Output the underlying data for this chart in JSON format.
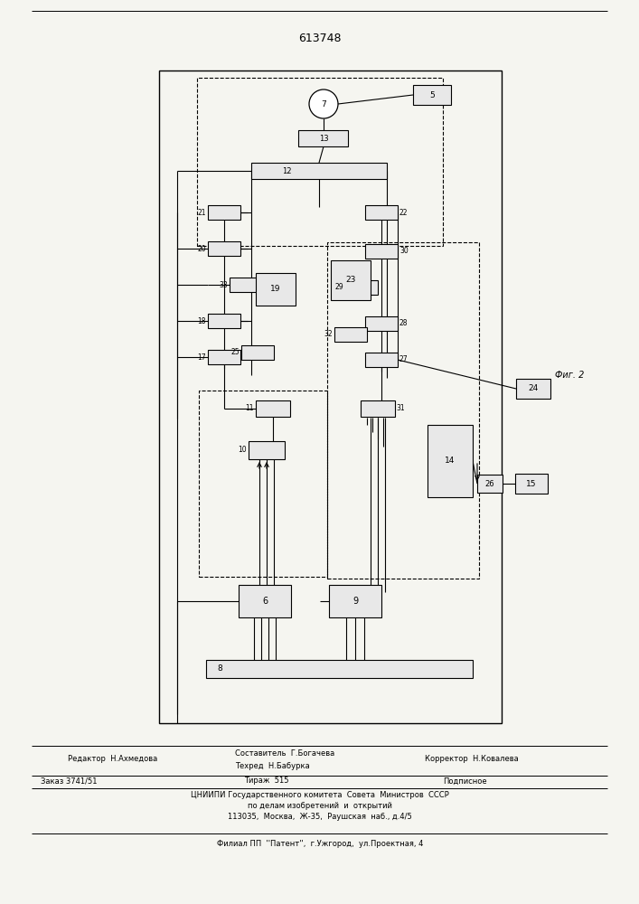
{
  "title": "613748",
  "background_color": "#f5f5f0",
  "box_fill": "#e8e8e8",
  "box_fill_light": "#f0f0f0",
  "line_color": "#111111",
  "footer": {
    "line1_left": "Редактор  Н.Ахмедова",
    "line1_center1": "Составитель  Г.Богачева",
    "line1_center2": "Техред  Н.Бабурка",
    "line1_right": "Корректор  Н.Ковалева",
    "line2_left": "Заказ 3741/51",
    "line2_center": "Тираж  515",
    "line2_right": "Подписное",
    "line3": "ЦНИИПИ Государственного комитета  Совета  Министров  СССР",
    "line4": "по делам изобретений  и  открытий",
    "line5": "113035,  Москва,  Ж-35,  Раушская  наб., д.4/5",
    "line6": "Филиал ПП  ''Патент'',  г.Ужгород,  ул.Проектная, 4"
  }
}
